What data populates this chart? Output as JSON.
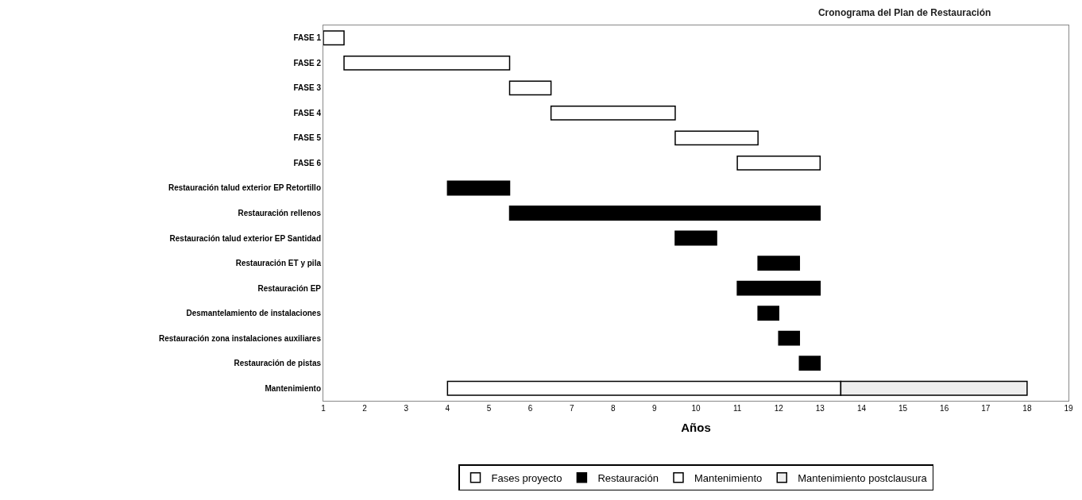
{
  "chart_data": {
    "type": "bar",
    "orientation": "horizontal",
    "title": "Cronograma del Plan de Restauración",
    "xlabel": "Años",
    "categories": [
      "FASE 1",
      "FASE 2",
      "FASE 3",
      "FASE 4",
      "FASE 5",
      "FASE 6",
      "Restauración talud exterior EP Retortillo",
      "Restauración rellenos",
      "Restauración talud exterior EP Santidad",
      "Restauración ET y pila",
      "Restauración EP",
      "Desmantelamiento de instalaciones",
      "Restauración zona instalaciones auxiliares",
      "Restauración de pistas",
      "Mantenimiento"
    ],
    "series": [
      {
        "name": "Fases proyecto",
        "color": "#ffffff",
        "base": [
          1,
          1.5,
          5.5,
          6.5,
          9.5,
          11,
          null,
          null,
          null,
          null,
          null,
          null,
          null,
          null,
          null
        ],
        "values": [
          0.5,
          4,
          1,
          3,
          2,
          2,
          null,
          null,
          null,
          null,
          null,
          null,
          null,
          null,
          null
        ]
      },
      {
        "name": "Restauración",
        "color": "#000000",
        "base": [
          null,
          null,
          null,
          null,
          null,
          null,
          4,
          5.5,
          9.5,
          11.5,
          11,
          11.5,
          12,
          12.5,
          null
        ],
        "values": [
          null,
          null,
          null,
          null,
          null,
          null,
          1.5,
          7.5,
          1,
          1,
          2,
          0.5,
          0.5,
          0.5,
          null
        ]
      },
      {
        "name": "Mantenimiento",
        "color": "#ffffff",
        "base": [
          null,
          null,
          null,
          null,
          null,
          null,
          null,
          null,
          null,
          null,
          null,
          null,
          null,
          null,
          4
        ],
        "values": [
          null,
          null,
          null,
          null,
          null,
          null,
          null,
          null,
          null,
          null,
          null,
          null,
          null,
          null,
          9.5
        ]
      },
      {
        "name": "Mantenimiento postclausura",
        "color": "#eeeeee",
        "base": [
          null,
          null,
          null,
          null,
          null,
          null,
          null,
          null,
          null,
          null,
          null,
          null,
          null,
          null,
          13.5
        ],
        "values": [
          null,
          null,
          null,
          null,
          null,
          null,
          null,
          null,
          null,
          null,
          null,
          null,
          null,
          null,
          4.5
        ]
      }
    ],
    "xlim": [
      1,
      19
    ],
    "xticks": [
      1,
      2,
      3,
      4,
      5,
      6,
      7,
      8,
      9,
      10,
      11,
      12,
      13,
      14,
      15,
      16,
      17,
      18,
      19
    ],
    "legend": "bottom"
  }
}
